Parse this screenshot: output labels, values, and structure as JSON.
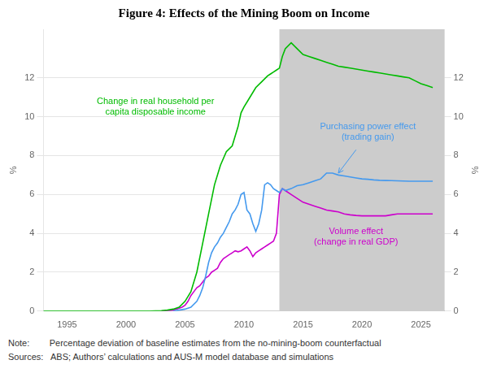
{
  "chart_data": {
    "type": "line",
    "title": "Figure 4: Effects of the Mining Boom on Income",
    "ylabel": "%",
    "y2label": "%",
    "note": "Note:        Percentage deviation of baseline estimates from the no-mining-boom counterfactual",
    "sources": "Sources:   ABS; Authors’ calculations and AUS-M model database and simulations",
    "xlim": [
      1993,
      2027
    ],
    "ylim": [
      0,
      14.5
    ],
    "y2lim": [
      0,
      14.5
    ],
    "xticks": [
      1995,
      2000,
      2005,
      2010,
      2015,
      2020,
      2025
    ],
    "yticks": [
      0,
      2,
      4,
      6,
      8,
      10,
      12
    ],
    "y2ticks": [
      0,
      2,
      4,
      6,
      8,
      10,
      12
    ],
    "grid": "y",
    "shade": {
      "start": 2013.0,
      "end": 2027,
      "color": "#cccccc"
    },
    "series": [
      {
        "color": "#00bb00",
        "x": [
          1993,
          1994,
          1995,
          1996,
          1997,
          1998,
          1999,
          2000,
          2001,
          2002,
          2003,
          2003.5,
          2004,
          2004.5,
          2005,
          2005.5,
          2006,
          2006.5,
          2007,
          2007.5,
          2008,
          2008.5,
          2009,
          2009.25,
          2009.5,
          2009.75,
          2010,
          2010.5,
          2011,
          2011.5,
          2012,
          2012.25,
          2012.5,
          2012.75,
          2013,
          2013.25,
          2013.5,
          2014,
          2014.5,
          2015,
          2015.5,
          2016,
          2016.5,
          2017,
          2017.5,
          2018,
          2018.5,
          2019,
          2019.5,
          2020,
          2020.5,
          2021,
          2021.5,
          2022,
          2022.5,
          2023,
          2023.5,
          2024,
          2024.5,
          2025,
          2025.5,
          2026
        ],
        "values": [
          0,
          0,
          0,
          0,
          0,
          0,
          0,
          0,
          0,
          0,
          0.02,
          0.05,
          0.1,
          0.2,
          0.5,
          1.0,
          2.0,
          3.5,
          5.0,
          6.5,
          7.5,
          8.2,
          8.5,
          9.0,
          9.5,
          10.2,
          10.5,
          11.0,
          11.5,
          11.8,
          12.1,
          12.2,
          12.3,
          12.4,
          12.5,
          13.1,
          13.5,
          13.8,
          13.5,
          13.2,
          13.1,
          13.0,
          12.9,
          12.8,
          12.7,
          12.6,
          12.55,
          12.5,
          12.45,
          12.4,
          12.35,
          12.3,
          12.25,
          12.2,
          12.15,
          12.1,
          12.05,
          12.0,
          11.85,
          11.7,
          11.6,
          11.5
        ]
      },
      {
        "color": "#4499ee",
        "x": [
          2004,
          2004.5,
          2005,
          2005.5,
          2006,
          2006.25,
          2006.5,
          2006.75,
          2007,
          2007.25,
          2007.5,
          2007.75,
          2008,
          2008.25,
          2008.5,
          2008.75,
          2009,
          2009.25,
          2009.5,
          2009.75,
          2010,
          2010.25,
          2010.5,
          2010.75,
          2011,
          2011.25,
          2011.5,
          2011.75,
          2012,
          2012.25,
          2012.5,
          2012.75,
          2013,
          2013.25,
          2013.5,
          2014,
          2014.5,
          2015,
          2015.5,
          2016,
          2016.5,
          2017,
          2017.5,
          2018,
          2018.5,
          2019,
          2019.5,
          2020,
          2020.5,
          2021,
          2021.5,
          2022,
          2022.5,
          2023,
          2023.5,
          2024,
          2024.5,
          2025,
          2025.5,
          2026
        ],
        "values": [
          0,
          0.05,
          0.1,
          0.2,
          0.5,
          0.8,
          1.2,
          1.8,
          2.5,
          3.0,
          3.3,
          3.5,
          3.8,
          4.0,
          4.3,
          4.6,
          5.0,
          5.2,
          5.5,
          6.0,
          6.1,
          5.2,
          5.0,
          4.5,
          4.1,
          4.5,
          5.2,
          6.5,
          6.6,
          6.5,
          6.3,
          6.2,
          6.1,
          6.3,
          6.2,
          6.3,
          6.45,
          6.5,
          6.6,
          6.7,
          6.8,
          7.1,
          7.1,
          7.0,
          6.95,
          6.9,
          6.85,
          6.8,
          6.78,
          6.75,
          6.73,
          6.72,
          6.71,
          6.7,
          6.69,
          6.68,
          6.68,
          6.68,
          6.68,
          6.68
        ]
      },
      {
        "color": "#cc00cc",
        "x": [
          2003,
          2003.5,
          2004,
          2004.25,
          2004.5,
          2004.75,
          2005,
          2005.25,
          2005.5,
          2005.75,
          2006,
          2006.25,
          2006.5,
          2006.75,
          2007,
          2007.25,
          2007.5,
          2007.75,
          2008,
          2008.25,
          2008.5,
          2008.75,
          2009,
          2009.25,
          2009.5,
          2009.75,
          2010,
          2010.25,
          2010.5,
          2010.75,
          2011,
          2011.25,
          2011.5,
          2011.75,
          2012,
          2012.25,
          2012.5,
          2012.75,
          2013,
          2013.25,
          2013.5,
          2014,
          2014.5,
          2015,
          2015.5,
          2016,
          2016.5,
          2017,
          2017.5,
          2018,
          2018.5,
          2019,
          2019.5,
          2020,
          2020.5,
          2021,
          2021.5,
          2022,
          2022.5,
          2023,
          2023.5,
          2024,
          2024.5,
          2025,
          2025.5,
          2026
        ],
        "values": [
          0,
          0,
          0.05,
          0.1,
          0.15,
          0.2,
          0.3,
          0.5,
          0.8,
          1.0,
          1.2,
          1.3,
          1.5,
          1.7,
          1.8,
          2.0,
          2.1,
          2.2,
          2.5,
          2.7,
          2.8,
          2.9,
          3.0,
          3.1,
          3.05,
          3.1,
          3.2,
          3.3,
          3.1,
          2.8,
          3.0,
          3.1,
          3.2,
          3.3,
          3.4,
          3.5,
          3.6,
          4.0,
          6.0,
          6.3,
          6.2,
          6.0,
          5.8,
          5.6,
          5.5,
          5.4,
          5.3,
          5.2,
          5.15,
          5.1,
          5.0,
          4.95,
          4.92,
          4.9,
          4.9,
          4.9,
          4.9,
          4.9,
          4.95,
          5.0,
          5.0,
          5.0,
          5.0,
          5.0,
          5.0,
          5.0
        ]
      }
    ],
    "annotations": [
      {
        "text": "Change in real household per\ncapita disposable income",
        "x": 2002.5,
        "y": 10.5,
        "color": "#00bb00"
      },
      {
        "text": "Purchasing power effect\n(trading gain)",
        "x": 2020.5,
        "y": 9.2,
        "color": "#4499ee",
        "arrow": {
          "from": [
            2019.5,
            8.3
          ],
          "to": [
            2018.0,
            7.1
          ]
        }
      },
      {
        "text": "Volume effect\n(change in real GDP)",
        "x": 2019.5,
        "y": 3.8,
        "color": "#cc00cc"
      }
    ]
  }
}
